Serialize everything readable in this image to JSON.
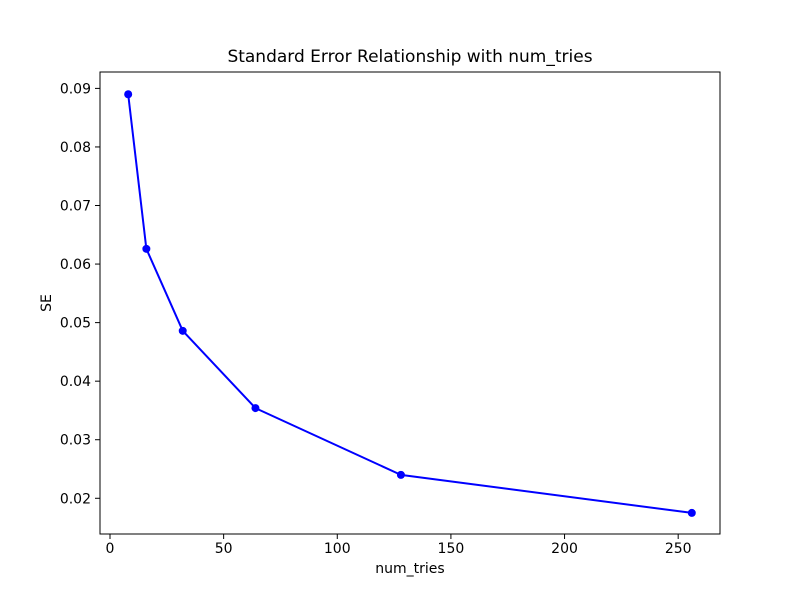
{
  "figure": {
    "background": "#ffffff"
  },
  "chart_data": {
    "type": "line",
    "title": "Standard Error Relationship with num_tries",
    "xlabel": "num_tries",
    "ylabel": "SE",
    "x": [
      8,
      16,
      32,
      64,
      128,
      256
    ],
    "y": [
      0.089,
      0.0626,
      0.0486,
      0.0354,
      0.024,
      0.0175
    ],
    "series": [
      {
        "name": "SE",
        "color": "#0000ff",
        "marker": "circle",
        "line_width": 2,
        "marker_radius": 4
      }
    ],
    "xlim": [
      -4.4,
      268.4
    ],
    "ylim": [
      0.0139,
      0.0928
    ],
    "xticks": [
      0,
      50,
      100,
      150,
      200,
      250
    ],
    "yticks": [
      0.02,
      0.03,
      0.04,
      0.05,
      0.06,
      0.07,
      0.08,
      0.09
    ],
    "ytick_decimals": 2,
    "grid": false,
    "legend": null,
    "frame_color": "#000000"
  }
}
